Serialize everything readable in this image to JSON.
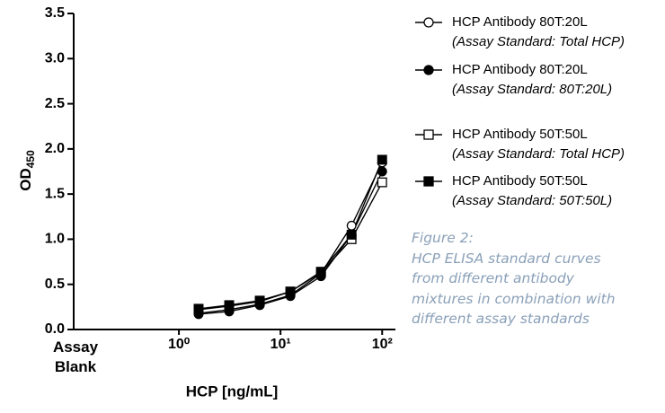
{
  "chart_data": {
    "type": "scatter",
    "x_label": "HCP [ng/mL]",
    "y_label": "OD",
    "y_label_subscript": "450",
    "x_log": true,
    "xlim": [
      0.1,
      135
    ],
    "xticks": [
      {
        "value": 0.1,
        "label": "Assay Blank"
      },
      {
        "value": 1,
        "label": "10⁰"
      },
      {
        "value": 10,
        "label": "10¹"
      },
      {
        "value": 100,
        "label": "10²"
      }
    ],
    "ylim": [
      0,
      3.5
    ],
    "yticks": [
      {
        "value": 0,
        "label": "0.0"
      },
      0.5,
      {
        "value": 1,
        "label": "1.0"
      },
      1.5,
      {
        "value": 2,
        "label": "2.0"
      },
      2.5,
      {
        "value": 3,
        "label": "3.0"
      },
      3.5
    ],
    "x": [
      1.5625,
      3.125,
      6.25,
      12.5,
      25,
      50,
      100
    ],
    "series": [
      {
        "name": "HCP Antibody 80T:20L",
        "note": "(Assay Standard: Total HCP)",
        "marker": "circle",
        "filled": false,
        "color": "#000000",
        "values": [
          0.18,
          0.22,
          0.28,
          0.38,
          0.62,
          1.15,
          1.85
        ]
      },
      {
        "name": "HCP Antibody 80T:20L",
        "note": "(Assay Standard: 80T:20L)",
        "marker": "circle",
        "filled": true,
        "color": "#000000",
        "values": [
          0.17,
          0.2,
          0.27,
          0.37,
          0.59,
          1.05,
          1.75
        ]
      },
      {
        "name": "HCP Antibody 50T:50L",
        "note": "(Assay Standard: Total HCP)",
        "marker": "square",
        "filled": false,
        "color": "#000000",
        "values": [
          0.22,
          0.26,
          0.31,
          0.42,
          0.63,
          1.0,
          1.63
        ]
      },
      {
        "name": "HCP Antibody 50T:50L",
        "note": "(Assay Standard: 50T:50L)",
        "marker": "square",
        "filled": true,
        "color": "#000000",
        "values": [
          0.23,
          0.27,
          0.32,
          0.42,
          0.64,
          1.05,
          1.88
        ]
      }
    ]
  },
  "caption": {
    "title": "Figure 2:",
    "lines": [
      "HCP ELISA standard curves",
      "from different antibody",
      "mixtures in combination with",
      "different assay standards"
    ]
  }
}
